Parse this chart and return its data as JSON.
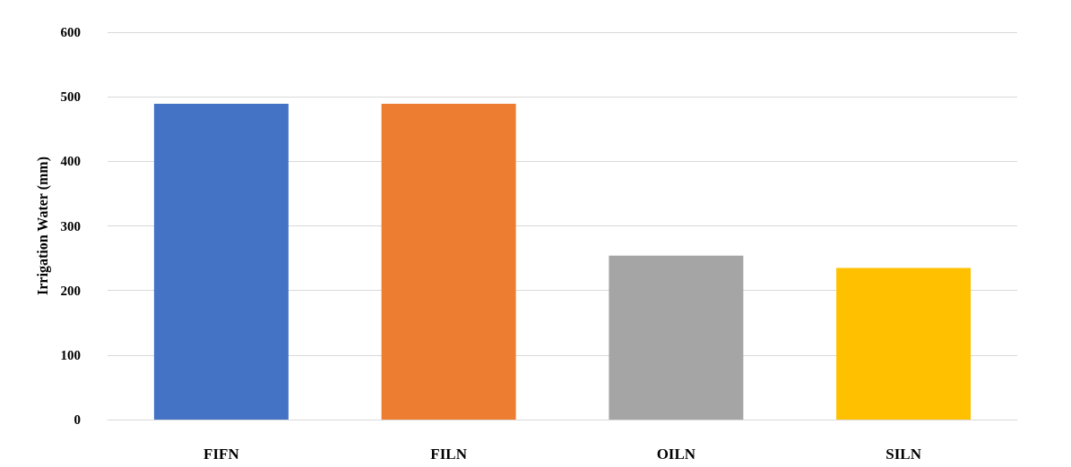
{
  "chart_data": {
    "type": "bar",
    "ylabel": "Irrigation Water (mm)",
    "categories": [
      "FIFN",
      "FILN",
      "OILN",
      "SILN"
    ],
    "values": [
      489,
      489,
      254,
      235
    ],
    "colors": [
      "#4472c4",
      "#ed7d31",
      "#a5a5a5",
      "#ffc000"
    ],
    "ylim": [
      0,
      600
    ],
    "yticks": [
      0,
      100,
      200,
      300,
      400,
      500,
      600
    ],
    "grid": "y"
  }
}
